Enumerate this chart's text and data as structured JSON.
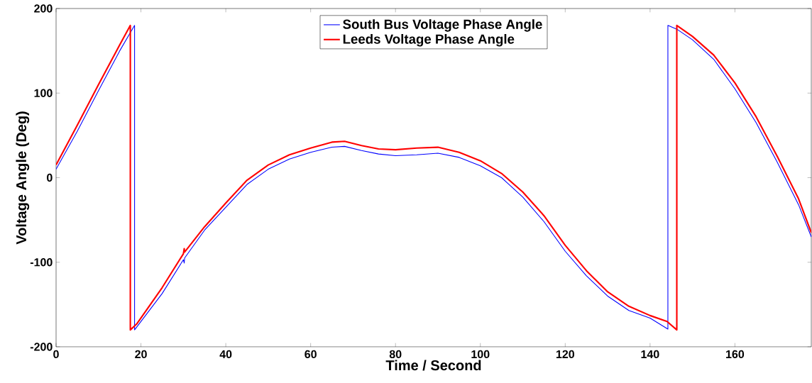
{
  "chart_data": {
    "type": "line",
    "xlabel": "Time / Second",
    "ylabel": "Voltage Angle (Deg)",
    "xlim": [
      0,
      178
    ],
    "ylim": [
      -200,
      200
    ],
    "xticks": [
      0,
      20,
      40,
      60,
      80,
      100,
      120,
      140,
      160
    ],
    "yticks": [
      -200,
      -100,
      0,
      100,
      200
    ],
    "grid": false,
    "legend": "top",
    "marker": "none",
    "line_style": "solid",
    "series": [
      {
        "name": "South Bus Voltage Phase Angle",
        "color": "#0000ff",
        "x": [
          0,
          5,
          10,
          15,
          18.5,
          18.5,
          25,
          30,
          30.2,
          30.3,
          35,
          40,
          45,
          50,
          55,
          60,
          65,
          68,
          72,
          76,
          80,
          85,
          90,
          95,
          100,
          105,
          110,
          115,
          120,
          125,
          130,
          135,
          140,
          144.2,
          144.2,
          146.5,
          150,
          155,
          160,
          165,
          170,
          175,
          178
        ],
        "values": [
          10,
          55,
          103,
          150,
          180,
          -180,
          -137,
          -97,
          -101,
          -95,
          -62,
          -35,
          -8,
          10,
          22,
          30,
          36,
          37,
          32,
          28,
          26,
          27,
          29,
          24,
          14,
          0,
          -23,
          -52,
          -87,
          -116,
          -140,
          -157,
          -166,
          -179,
          180,
          175,
          163,
          140,
          105,
          65,
          18,
          -32,
          -70
        ]
      },
      {
        "name": "Leeds Voltage Phase Angle",
        "color": "#ff0000",
        "x": [
          0,
          5,
          10,
          15,
          17.5,
          17.5,
          19,
          25,
          30,
          30.2,
          30.3,
          35,
          40,
          45,
          50,
          55,
          60,
          65,
          68,
          72,
          76,
          80,
          85,
          90,
          95,
          100,
          105,
          110,
          115,
          120,
          125,
          130,
          135,
          140,
          144,
          146.3,
          146.3,
          150,
          155,
          160,
          165,
          170,
          175,
          178
        ],
        "values": [
          15,
          62,
          110,
          157,
          180,
          -180,
          -173,
          -130,
          -90,
          -84,
          -88,
          -58,
          -30,
          -3,
          15,
          27,
          35,
          42,
          43,
          38,
          34,
          33,
          35,
          36,
          30,
          20,
          5,
          -17,
          -45,
          -80,
          -110,
          -135,
          -152,
          -163,
          -170,
          -180,
          180,
          167,
          145,
          112,
          72,
          25,
          -25,
          -65
        ]
      }
    ]
  }
}
